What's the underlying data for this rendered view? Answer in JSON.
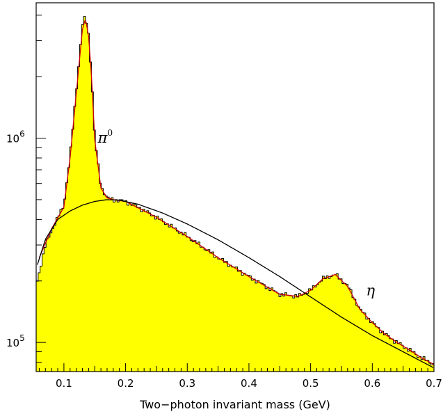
{
  "chart_data": {
    "type": "area",
    "title": "",
    "xlabel": "Two−photon invariant mass (GeV)",
    "ylabel": "",
    "xlim": [
      0.055,
      0.7
    ],
    "ylim": [
      72000,
      4600000
    ],
    "yscale": "log",
    "grid": false,
    "legend": "none",
    "x_ticks": [
      0.1,
      0.2,
      0.3,
      0.4,
      0.5,
      0.6,
      0.7
    ],
    "x_tick_labels": [
      "0.1",
      "0.2",
      "0.3",
      "0.4",
      "0.5",
      "0.6",
      "0.7"
    ],
    "y_major_ticks": [
      {
        "value": 100000,
        "base": "10",
        "exponent": "5"
      },
      {
        "value": 1000000,
        "base": "10",
        "exponent": "6"
      }
    ],
    "annotations": [
      {
        "text": "π",
        "superscript": "0",
        "x": 0.155,
        "y": 950000
      },
      {
        "text": "η",
        "superscript": "",
        "x": 0.59,
        "y": 170000
      }
    ],
    "colors": {
      "fill": "#ffff00",
      "histogram": "#000000",
      "fit": "#cc0000",
      "background_curve": "#000000"
    },
    "series": [
      {
        "kind": "histogram",
        "x": [
          0.055,
          0.07,
          0.085,
          0.1,
          0.11,
          0.12,
          0.13,
          0.135,
          0.14,
          0.145,
          0.15,
          0.16,
          0.17,
          0.18,
          0.2,
          0.22,
          0.25,
          0.3,
          0.35,
          0.4,
          0.45,
          0.48,
          0.5,
          0.52,
          0.54,
          0.56,
          0.58,
          0.6,
          0.62,
          0.64,
          0.66,
          0.68,
          0.7
        ],
        "y": [
          190000,
          300000,
          380000,
          470000,
          820000,
          1700000,
          3600000,
          3950000,
          3200000,
          2000000,
          1000000,
          580000,
          510000,
          500000,
          490000,
          460000,
          410000,
          330000,
          260000,
          210000,
          172000,
          168000,
          180000,
          205000,
          215000,
          190000,
          145000,
          125000,
          110000,
          100000,
          92000,
          84000,
          78000
        ]
      },
      {
        "kind": "fit",
        "x": [
          0.06,
          0.08,
          0.1,
          0.11,
          0.12,
          0.13,
          0.135,
          0.14,
          0.145,
          0.15,
          0.16,
          0.17,
          0.18,
          0.2,
          0.25,
          0.3,
          0.35,
          0.4,
          0.45,
          0.48,
          0.5,
          0.52,
          0.54,
          0.56,
          0.58,
          0.6,
          0.62,
          0.64,
          0.66,
          0.68,
          0.7
        ],
        "y": [
          260000,
          360000,
          460000,
          800000,
          1650000,
          3400000,
          3850000,
          3150000,
          1950000,
          980000,
          570000,
          510000,
          500000,
          490000,
          410000,
          330000,
          260000,
          210000,
          172000,
          168000,
          180000,
          205000,
          215000,
          188000,
          145000,
          125000,
          110000,
          100000,
          92000,
          84000,
          78000
        ]
      },
      {
        "kind": "background",
        "x": [
          0.057,
          0.07,
          0.09,
          0.11,
          0.13,
          0.15,
          0.17,
          0.19,
          0.22,
          0.26,
          0.3,
          0.35,
          0.4,
          0.45,
          0.5,
          0.55,
          0.6,
          0.65,
          0.7
        ],
        "y": [
          240000,
          320000,
          400000,
          440000,
          470000,
          490000,
          500000,
          497000,
          475000,
          430000,
          380000,
          318000,
          260000,
          210000,
          167000,
          133000,
          108000,
          90000,
          75000
        ]
      }
    ]
  }
}
